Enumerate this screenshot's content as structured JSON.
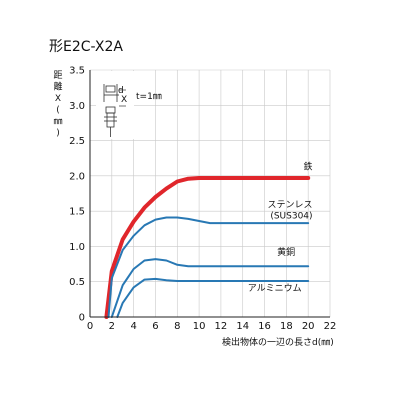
{
  "chart_data": {
    "type": "line",
    "title": "形E2C-X2A",
    "xlabel": "検出物体の一辺の長さd(㎜)",
    "ylabel_chars": [
      "距",
      "離",
      "X",
      "(",
      "㎜",
      ")"
    ],
    "xlim": [
      0,
      22
    ],
    "ylim": [
      0,
      3.5
    ],
    "xticks": [
      "0",
      "2",
      "4",
      "6",
      "8",
      "10",
      "12",
      "14",
      "16",
      "18",
      "20",
      "22"
    ],
    "yticks": [
      "0",
      "0.5",
      "1.0",
      "1.5",
      "2.0",
      "2.5",
      "3.0",
      "3.5"
    ],
    "grid": true,
    "inset_label": "t=1㎜",
    "inset_d": "d",
    "inset_x": "X",
    "series": [
      {
        "name": "鉄",
        "color": "#e0262b",
        "x": [
          1.5,
          2,
          3,
          4,
          5,
          6,
          7,
          8,
          9,
          10,
          12,
          14,
          16,
          18,
          20
        ],
        "y": [
          0,
          0.65,
          1.1,
          1.35,
          1.55,
          1.7,
          1.82,
          1.92,
          1.96,
          1.97,
          1.97,
          1.97,
          1.97,
          1.97,
          1.97
        ]
      },
      {
        "name": "ステンレス\n(SUS304)",
        "color": "#2878b4",
        "x": [
          1.7,
          2,
          3,
          4,
          5,
          6,
          7,
          8,
          9,
          10,
          11,
          12,
          14,
          16,
          18,
          20
        ],
        "y": [
          0,
          0.55,
          0.95,
          1.15,
          1.3,
          1.38,
          1.41,
          1.41,
          1.39,
          1.36,
          1.33,
          1.33,
          1.33,
          1.33,
          1.33,
          1.33
        ]
      },
      {
        "name": "黄銅",
        "color": "#2878b4",
        "x": [
          2,
          3,
          4,
          5,
          6,
          7,
          8,
          9,
          10,
          12,
          14,
          16,
          18,
          20
        ],
        "y": [
          0,
          0.45,
          0.68,
          0.8,
          0.82,
          0.8,
          0.74,
          0.72,
          0.72,
          0.72,
          0.72,
          0.72,
          0.72,
          0.72
        ]
      },
      {
        "name": "アルミニウム",
        "color": "#2878b4",
        "x": [
          2.5,
          3,
          4,
          5,
          6,
          7,
          8,
          10,
          12,
          14,
          16,
          18,
          20
        ],
        "y": [
          0,
          0.2,
          0.42,
          0.53,
          0.54,
          0.52,
          0.51,
          0.51,
          0.51,
          0.51,
          0.51,
          0.51,
          0.51
        ]
      }
    ]
  }
}
